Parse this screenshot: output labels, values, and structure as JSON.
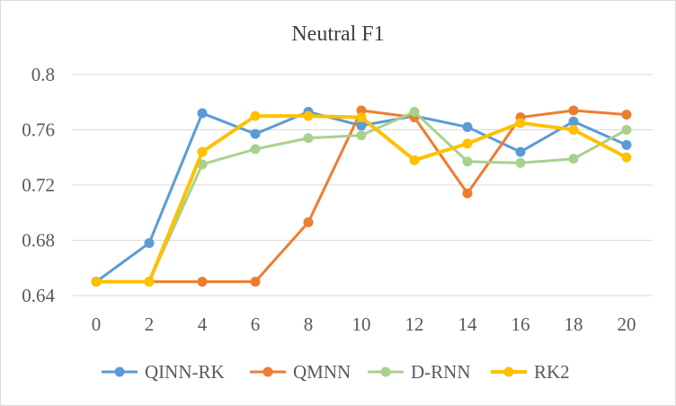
{
  "chart_data": {
    "type": "line",
    "title": "Neutral F1",
    "xlabel": "",
    "ylabel": "",
    "x": [
      0,
      2,
      4,
      6,
      8,
      10,
      12,
      14,
      16,
      18,
      20
    ],
    "ylim": [
      0.64,
      0.8
    ],
    "yticks": [
      "0.64",
      "0.68",
      "0.72",
      "0.76",
      "0.8"
    ],
    "xticks": [
      "0",
      "2",
      "4",
      "6",
      "8",
      "10",
      "12",
      "14",
      "16",
      "18",
      "20"
    ],
    "grid": true,
    "legend": "bottom",
    "series": [
      {
        "name": "QINN-RK",
        "color": "#5b9bd5",
        "values": [
          0.65,
          0.678,
          0.772,
          0.757,
          0.773,
          0.763,
          0.77,
          0.762,
          0.744,
          0.766,
          0.749
        ]
      },
      {
        "name": "QMNN",
        "color": "#ed7d31",
        "values": [
          0.65,
          0.65,
          0.65,
          0.65,
          0.693,
          0.774,
          0.769,
          0.714,
          0.769,
          0.774,
          0.771
        ]
      },
      {
        "name": "D-RNN",
        "color": "#a9d18e",
        "values": [
          0.65,
          0.65,
          0.735,
          0.746,
          0.754,
          0.756,
          0.773,
          0.737,
          0.736,
          0.739,
          0.76
        ]
      },
      {
        "name": "RK2",
        "color": "#ffc000",
        "values": [
          0.65,
          0.65,
          0.744,
          0.77,
          0.77,
          0.769,
          0.738,
          0.75,
          0.765,
          0.76,
          0.74
        ]
      }
    ]
  }
}
